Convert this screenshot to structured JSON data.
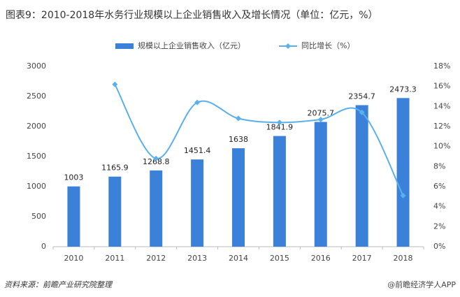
{
  "chart_data": {
    "type": "combo",
    "title": "图表9：2010-2018年水务行业规模以上企业销售收入及增长情况（单位：亿元，%）",
    "categories": [
      "2010",
      "2011",
      "2012",
      "2013",
      "2014",
      "2015",
      "2016",
      "2017",
      "2018"
    ],
    "series": [
      {
        "name": "规模以上企业销售收入（亿元）",
        "type": "bar",
        "color": "#3b80d9",
        "values": [
          1003,
          1165.9,
          1268.8,
          1451.4,
          1638,
          1841.9,
          2075.7,
          2354.7,
          2473.3
        ]
      },
      {
        "name": "同比增长（%）",
        "type": "line",
        "axis": "y2",
        "color": "#5ab0ec",
        "values": [
          null,
          16.2,
          8.8,
          14.4,
          12.8,
          12.4,
          12.7,
          13.4,
          5.1
        ]
      }
    ],
    "ylim": [
      0,
      3000
    ],
    "yticks": [
      0,
      500,
      1000,
      1500,
      2000,
      2500,
      3000
    ],
    "y2lim": [
      0,
      18
    ],
    "y2ticks": [
      {
        "value": 0,
        "label": "0%"
      },
      {
        "value": 2,
        "label": "2%"
      },
      {
        "value": 4,
        "label": "4%"
      },
      {
        "value": 6,
        "label": "6%"
      },
      {
        "value": 8,
        "label": "8%"
      },
      {
        "value": 10,
        "label": "10%"
      },
      {
        "value": 12,
        "label": "12%"
      },
      {
        "value": 14,
        "label": "14%"
      },
      {
        "value": 16,
        "label": "16%"
      },
      {
        "value": 18,
        "label": "18%"
      }
    ],
    "grid": false,
    "source": "资料来源：前瞻产业研究院整理",
    "footer": "@前瞻经济学人APP"
  }
}
